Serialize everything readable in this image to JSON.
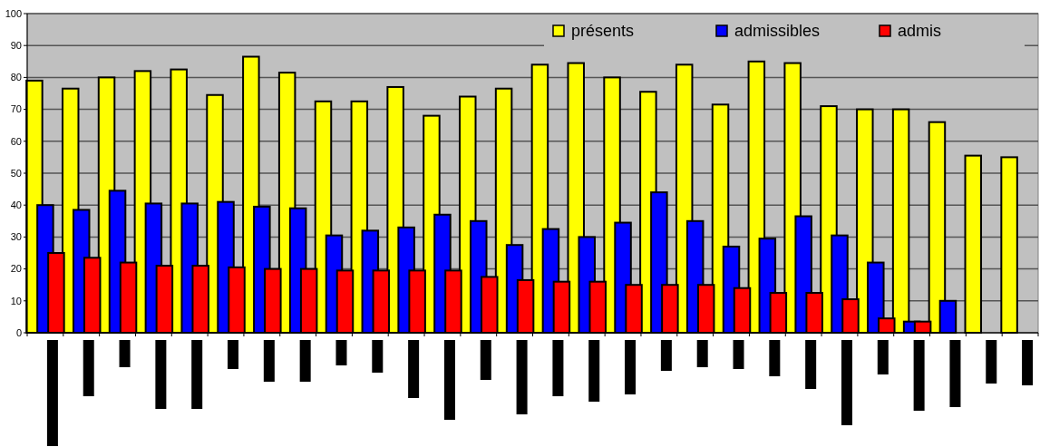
{
  "chart_data": {
    "type": "bar",
    "categories": [
      null,
      null,
      null,
      null,
      null,
      null,
      null,
      null,
      null,
      null,
      null,
      null,
      null,
      null,
      null,
      null,
      null,
      null,
      null,
      null,
      null,
      null,
      null,
      null,
      null,
      null,
      null,
      null
    ],
    "series": [
      {
        "name": "présents",
        "color": "#ffff00",
        "values": [
          79,
          76.5,
          80,
          82,
          82.5,
          74.5,
          86.5,
          81.5,
          72.5,
          72.5,
          77,
          68,
          74,
          76.5,
          84,
          84.5,
          80,
          75.5,
          84,
          71.5,
          85,
          84.5,
          71,
          70,
          70,
          66,
          55.5,
          55
        ]
      },
      {
        "name": "admissibles",
        "color": "#0000ff",
        "values": [
          40,
          38.5,
          44.5,
          40.5,
          40.5,
          41,
          39.5,
          39,
          30.5,
          32,
          33,
          37,
          35,
          27.5,
          32.5,
          30,
          34.5,
          44,
          35,
          27,
          29.5,
          36.5,
          30.5,
          22,
          3.5,
          10,
          null,
          null
        ]
      },
      {
        "name": "admis",
        "color": "#ff0000",
        "values": [
          25,
          23.5,
          22,
          21,
          21,
          20.5,
          20,
          20,
          19.5,
          19.5,
          19.5,
          19.5,
          17.5,
          16.5,
          16,
          16,
          15,
          15,
          15,
          14,
          12.5,
          12.5,
          10.5,
          4.5,
          3.5,
          null,
          null,
          null
        ]
      }
    ],
    "ylim": [
      0,
      100
    ],
    "yticks": [
      0,
      10,
      20,
      30,
      40,
      50,
      60,
      70,
      80,
      90,
      100
    ],
    "grid": "y",
    "legend": "top right"
  }
}
